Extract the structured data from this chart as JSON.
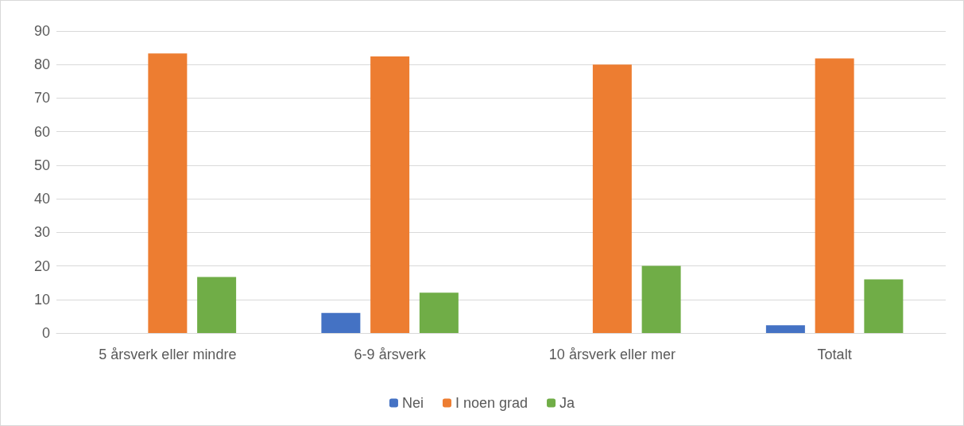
{
  "chart_data": {
    "type": "bar",
    "categories": [
      "5 årsverk eller mindre",
      "6-9 årsverk",
      "10 årsverk eller mer",
      "Totalt"
    ],
    "series": [
      {
        "name": "Nei",
        "color": "#4472c4",
        "values": [
          0,
          6,
          0,
          2.3
        ]
      },
      {
        "name": "I noen grad",
        "color": "#ed7d31",
        "values": [
          83.3,
          82.4,
          80,
          81.8
        ]
      },
      {
        "name": "Ja",
        "color": "#70ad47",
        "values": [
          16.7,
          12,
          20,
          16
        ]
      }
    ],
    "ylim": [
      0,
      90
    ],
    "yticks": [
      0,
      10,
      20,
      30,
      40,
      50,
      60,
      70,
      80,
      90
    ],
    "grid": "y",
    "legend": "bottom"
  }
}
